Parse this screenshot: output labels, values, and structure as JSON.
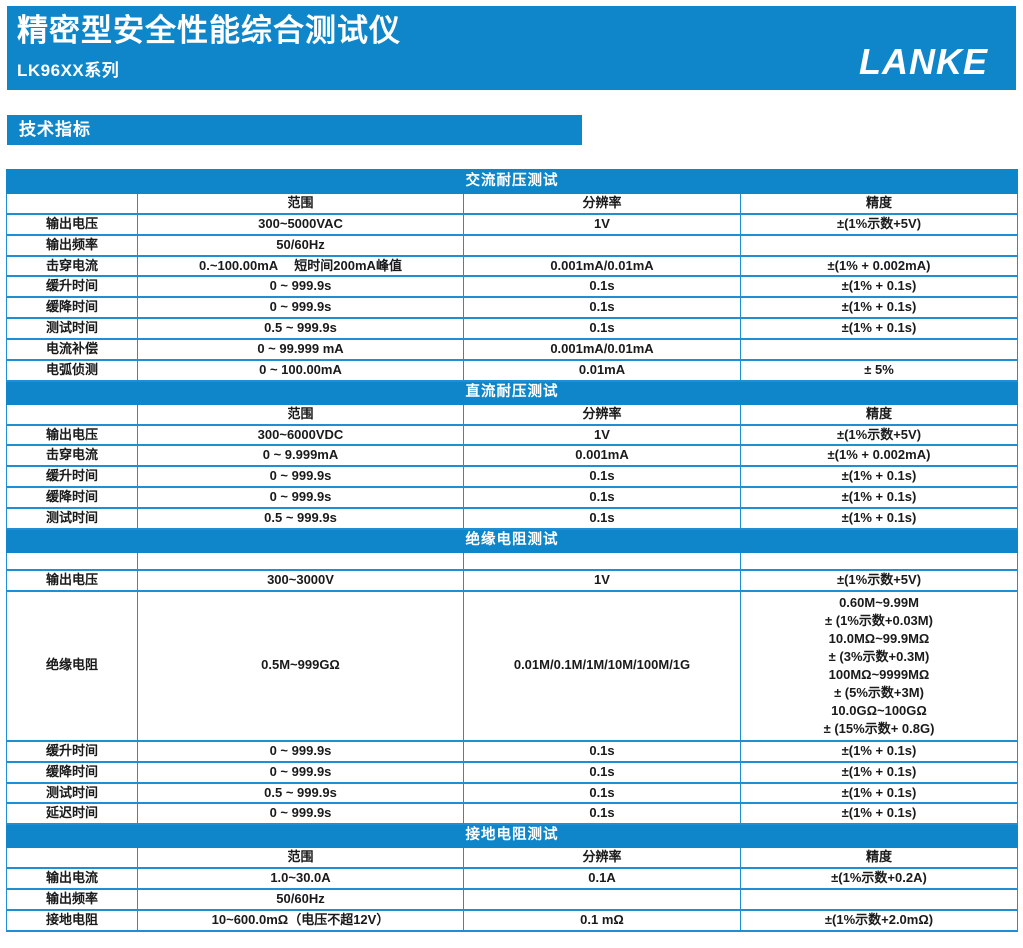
{
  "banner": {
    "title": "精密型安全性能综合测试仪",
    "series": "LK96XX系列",
    "brand": "LANKE"
  },
  "section_label": "技术指标",
  "colors": {
    "primary_blue": "#0e86c9",
    "table_border_blue": "#1f8ed2",
    "text_dark": "#1a1a1a",
    "text_on_blue": "#ffffff"
  },
  "table": {
    "column_headers": [
      "",
      "范围",
      "分辨率",
      "精度"
    ],
    "sections": [
      {
        "title": "交流耐压测试",
        "header": [
          "",
          "范围",
          "分辨率",
          "精度"
        ],
        "rows": [
          [
            "输出电压",
            "300~5000VAC",
            "1V",
            "±(1%示数+5V)"
          ],
          [
            "输出频率",
            "50/60Hz",
            "",
            ""
          ],
          [
            "击穿电流",
            "0.~100.00mA　 短时间200mA峰值",
            "0.001mA/0.01mA",
            "±(1% + 0.002mA)"
          ],
          [
            "缓升时间",
            "0 ~ 999.9s",
            "0.1s",
            "±(1% + 0.1s)"
          ],
          [
            "缓降时间",
            "0 ~ 999.9s",
            "0.1s",
            "±(1% + 0.1s)"
          ],
          [
            "测试时间",
            "0.5 ~ 999.9s",
            "0.1s",
            "±(1% + 0.1s)"
          ],
          [
            "电流补偿",
            "0 ~ 99.999 mA",
            "0.001mA/0.01mA",
            ""
          ],
          [
            "电弧侦测",
            "0 ~ 100.00mA",
            "0.01mA",
            "± 5%"
          ]
        ]
      },
      {
        "title": "直流耐压测试",
        "header": [
          "",
          "范围",
          "分辨率",
          "精度"
        ],
        "rows": [
          [
            "输出电压",
            "300~6000VDC",
            "1V",
            "±(1%示数+5V)"
          ],
          [
            "击穿电流",
            "0 ~ 9.999mA",
            "0.001mA",
            "±(1% + 0.002mA)"
          ],
          [
            "缓升时间",
            "0 ~ 999.9s",
            "0.1s",
            "±(1% + 0.1s)"
          ],
          [
            "缓降时间",
            "0 ~ 999.9s",
            "0.1s",
            "±(1% + 0.1s)"
          ],
          [
            "测试时间",
            "0.5 ~ 999.9s",
            "0.1s",
            "±(1% + 0.1s)"
          ]
        ]
      },
      {
        "title": "绝缘电阻测试",
        "header": [
          "",
          "",
          "",
          ""
        ],
        "rows": [
          [
            "输出电压",
            "300~3000V",
            "1V",
            "±(1%示数+5V)"
          ],
          [
            "绝缘电阻",
            "0.5M~999GΩ",
            "0.01M/0.1M/1M/10M/100M/1G",
            [
              "0.60M~9.99M",
              "± (1%示数+0.03M)",
              "10.0MΩ~99.9MΩ",
              "± (3%示数+0.3M)",
              "100MΩ~9999MΩ",
              "± (5%示数+3M)",
              "10.0GΩ~100GΩ",
              "± (15%示数+ 0.8G)"
            ]
          ],
          [
            "缓升时间",
            "0 ~ 999.9s",
            "0.1s",
            "±(1% + 0.1s)"
          ],
          [
            "缓降时间",
            "0 ~ 999.9s",
            "0.1s",
            "±(1% + 0.1s)"
          ],
          [
            "测试时间",
            "0.5 ~ 999.9s",
            "0.1s",
            "±(1% + 0.1s)"
          ],
          [
            "延迟时间",
            "0 ~ 999.9s",
            "0.1s",
            "±(1% + 0.1s)"
          ]
        ]
      },
      {
        "title": "接地电阻测试",
        "header": [
          "",
          "范围",
          "分辨率",
          "精度"
        ],
        "rows": [
          [
            "输出电流",
            "1.0~30.0A",
            "0.1A",
            "±(1%示数+0.2A)"
          ],
          [
            "输出频率",
            "50/60Hz",
            "",
            ""
          ],
          [
            "接地电阻",
            "10~600.0mΩ（电压不超12V）",
            "0.1 mΩ",
            "±(1%示数+2.0mΩ)"
          ]
        ]
      }
    ]
  }
}
